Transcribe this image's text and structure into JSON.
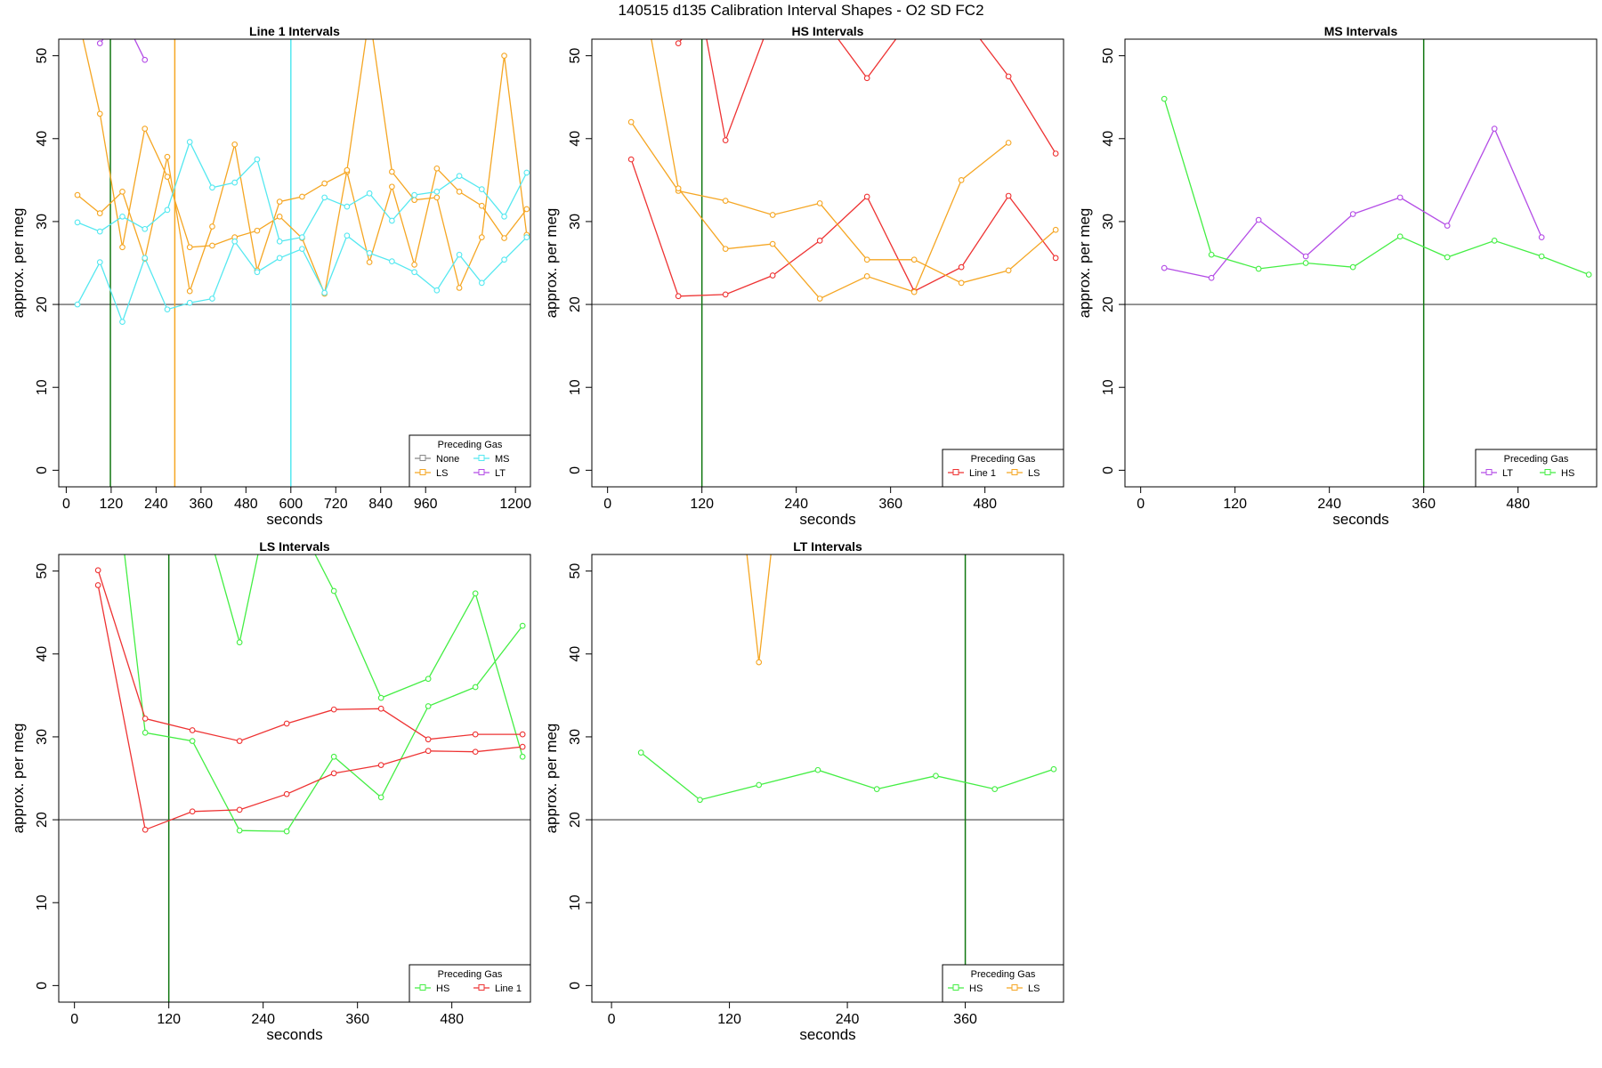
{
  "page": {
    "title": "140515   d135   Calibration Interval Shapes - O2 SD FC2"
  },
  "colors": {
    "None": "#888888",
    "LS": "#f5a623",
    "MS": "#55e8f0",
    "LT": "#b44de6",
    "HS": "#44ee44",
    "Line 1": "#ee3333",
    "vline_green": "#117711",
    "hline": "#444444"
  },
  "chart_data": [
    {
      "type": "line",
      "title": "Line 1 Intervals",
      "xlabel": "seconds",
      "ylabel": "approx. per meg",
      "xlim": [
        -20,
        1240
      ],
      "ylim": [
        -2,
        52
      ],
      "xticks": [
        0,
        120,
        240,
        360,
        480,
        600,
        720,
        840,
        960,
        1200
      ],
      "yticks": [
        0,
        10,
        20,
        30,
        40,
        50
      ],
      "hline": 20,
      "vlines": [
        {
          "x": 118,
          "color": "vline_green"
        },
        {
          "x": 290,
          "color": "LS"
        },
        {
          "x": 600,
          "color": "MS"
        }
      ],
      "legend": {
        "title": "Preceding Gas",
        "position": "bottom-right",
        "columns": 2,
        "entries": [
          "None",
          "MS",
          "LS",
          "LT"
        ]
      },
      "series": [
        {
          "name": "LS",
          "x": [
            30,
            90,
            150,
            210,
            270,
            330,
            390,
            450,
            510,
            570,
            630,
            690,
            750,
            810,
            870,
            930,
            990,
            1050,
            1110,
            1170,
            1230
          ],
          "y": [
            33.2,
            31.0,
            33.6,
            25.5,
            37.8,
            21.6,
            29.4,
            39.3,
            24.1,
            32.4,
            33.0,
            34.6,
            36.0,
            25.1,
            34.2,
            24.8,
            36.4,
            33.6,
            31.9,
            28.0,
            31.5
          ]
        },
        {
          "name": "LS",
          "x": [
            30,
            90,
            150,
            210,
            270,
            330,
            390,
            450,
            510,
            570,
            630,
            690,
            750,
            810,
            870,
            930,
            990,
            1050,
            1110,
            1170,
            1230
          ],
          "y": [
            55,
            43.0,
            26.9,
            41.2,
            35.4,
            26.9,
            27.1,
            28.1,
            28.9,
            30.6,
            28.0,
            21.3,
            36.2,
            55,
            36.0,
            32.6,
            32.9,
            22.0,
            28.1,
            50.0,
            28.4
          ]
        },
        {
          "name": "MS",
          "x": [
            30,
            90,
            150,
            210,
            270,
            330,
            390,
            450,
            510,
            570,
            630,
            690,
            750,
            810,
            870,
            930,
            990,
            1050,
            1110,
            1170,
            1230
          ],
          "y": [
            29.9,
            28.8,
            30.6,
            29.1,
            31.4,
            39.6,
            34.1,
            34.7,
            37.5,
            27.6,
            28.1,
            32.9,
            31.8,
            33.4,
            30.1,
            33.2,
            33.6,
            35.5,
            33.9,
            30.6,
            35.9
          ]
        },
        {
          "name": "MS",
          "x": [
            30,
            90,
            150,
            210,
            270,
            330,
            390,
            450,
            510,
            570,
            630,
            690,
            750,
            810,
            870,
            930,
            990,
            1050,
            1110,
            1170,
            1230
          ],
          "y": [
            20.0,
            25.1,
            17.9,
            25.6,
            19.4,
            20.2,
            20.7,
            27.6,
            23.9,
            25.6,
            26.7,
            21.4,
            28.3,
            26.2,
            25.2,
            23.9,
            21.7,
            26.0,
            22.6,
            25.4,
            28.1
          ]
        },
        {
          "name": "LT",
          "x": [
            90,
            150,
            210
          ],
          "y": [
            51.5,
            55,
            49.5
          ]
        }
      ]
    },
    {
      "type": "line",
      "title": "HS Intervals",
      "xlabel": "seconds",
      "ylabel": "approx. per meg",
      "xlim": [
        -20,
        580
      ],
      "ylim": [
        -2,
        52
      ],
      "xticks": [
        0,
        120,
        240,
        360,
        480
      ],
      "yticks": [
        0,
        10,
        20,
        30,
        40,
        50
      ],
      "hline": 20,
      "vlines": [
        {
          "x": 120,
          "color": "vline_green"
        }
      ],
      "legend": {
        "title": "Preceding Gas",
        "position": "bottom-right",
        "columns": 2,
        "entries": [
          "Line 1",
          "LS"
        ]
      },
      "series": [
        {
          "name": "Line 1",
          "x": [
            30,
            90,
            150,
            210,
            270,
            330,
            390,
            450,
            510,
            570
          ],
          "y": [
            37.5,
            21.0,
            21.2,
            23.5,
            27.7,
            33.0,
            21.6,
            24.5,
            33.1,
            25.6
          ]
        },
        {
          "name": "Line 1",
          "x": [
            90,
            120,
            150,
            210,
            270,
            330,
            390,
            450,
            510,
            570
          ],
          "y": [
            51.5,
            55,
            39.8,
            55,
            55,
            47.3,
            55,
            55,
            47.5,
            38.2
          ]
        },
        {
          "name": "LS",
          "x": [
            30,
            90,
            150,
            210,
            270,
            330,
            390,
            450,
            510,
            570
          ],
          "y": [
            42.0,
            33.7,
            32.5,
            30.8,
            32.2,
            25.4,
            25.4,
            22.6,
            24.1,
            29.0
          ]
        },
        {
          "name": "LS",
          "x": [
            50,
            90,
            150,
            210,
            270,
            330,
            390,
            450,
            510
          ],
          "y": [
            55,
            34.0,
            26.7,
            27.3,
            20.7,
            23.4,
            21.5,
            35.0,
            39.5
          ]
        }
      ]
    },
    {
      "type": "line",
      "title": "MS Intervals",
      "xlabel": "seconds",
      "ylabel": "approx. per meg",
      "xlim": [
        -20,
        580
      ],
      "ylim": [
        -2,
        52
      ],
      "xticks": [
        0,
        120,
        240,
        360,
        480
      ],
      "yticks": [
        0,
        10,
        20,
        30,
        40,
        50
      ],
      "hline": 20,
      "vlines": [
        {
          "x": 360,
          "color": "vline_green"
        }
      ],
      "legend": {
        "title": "Preceding Gas",
        "position": "bottom-right",
        "columns": 2,
        "entries": [
          "LT",
          "HS"
        ]
      },
      "series": [
        {
          "name": "LT",
          "x": [
            30,
            90,
            150,
            210,
            270,
            330,
            390,
            450,
            510
          ],
          "y": [
            24.4,
            23.2,
            30.2,
            25.8,
            30.9,
            32.9,
            29.5,
            41.2,
            28.1
          ]
        },
        {
          "name": "HS",
          "x": [
            30,
            90,
            150,
            210,
            270,
            330,
            390,
            450,
            510,
            570
          ],
          "y": [
            44.8,
            26.0,
            24.3,
            25.0,
            24.5,
            28.2,
            25.7,
            27.7,
            25.8,
            23.6
          ]
        }
      ]
    },
    {
      "type": "line",
      "title": "LS Intervals",
      "xlabel": "seconds",
      "ylabel": "approx. per meg",
      "xlim": [
        -20,
        580
      ],
      "ylim": [
        -2,
        52
      ],
      "xticks": [
        0,
        120,
        240,
        360,
        480
      ],
      "yticks": [
        0,
        10,
        20,
        30,
        40,
        50
      ],
      "hline": 20,
      "vlines": [
        {
          "x": 120,
          "color": "vline_green"
        }
      ],
      "legend": {
        "title": "Preceding Gas",
        "position": "bottom-right",
        "columns": 2,
        "entries": [
          "HS",
          "Line 1"
        ]
      },
      "series": [
        {
          "name": "HS",
          "x": [
            60,
            90,
            150,
            210,
            270,
            330,
            390,
            450,
            510,
            570
          ],
          "y": [
            55,
            30.5,
            29.5,
            18.7,
            18.6,
            27.6,
            22.7,
            33.7,
            36.0,
            43.4
          ]
        },
        {
          "name": "HS",
          "x": [
            170,
            210,
            240,
            290,
            330,
            390,
            450,
            510,
            570
          ],
          "y": [
            55,
            41.4,
            55,
            55,
            47.6,
            34.7,
            37.0,
            47.3,
            27.6
          ]
        },
        {
          "name": "Line 1",
          "x": [
            30,
            90,
            150,
            210,
            270,
            330,
            390,
            450,
            510,
            570
          ],
          "y": [
            50.1,
            32.2,
            30.8,
            29.5,
            31.6,
            33.3,
            33.4,
            29.7,
            30.3,
            30.3
          ]
        },
        {
          "name": "Line 1",
          "x": [
            30,
            90,
            150,
            210,
            270,
            330,
            390,
            450,
            510,
            570
          ],
          "y": [
            48.3,
            18.8,
            21.0,
            21.2,
            23.1,
            25.6,
            26.6,
            28.3,
            28.2,
            28.8
          ]
        }
      ]
    },
    {
      "type": "line",
      "title": "LT Intervals",
      "xlabel": "seconds",
      "ylabel": "approx. per meg",
      "xlim": [
        -20,
        460
      ],
      "ylim": [
        -2,
        52
      ],
      "xticks": [
        0,
        120,
        240,
        360
      ],
      "yticks": [
        0,
        10,
        20,
        30,
        40,
        50
      ],
      "hline": 20,
      "vlines": [
        {
          "x": 360,
          "color": "vline_green"
        }
      ],
      "legend": {
        "title": "Preceding Gas",
        "position": "bottom-right",
        "columns": 2,
        "entries": [
          "HS",
          "LS"
        ]
      },
      "series": [
        {
          "name": "HS",
          "x": [
            30,
            90,
            150,
            210,
            270,
            330,
            390,
            450
          ],
          "y": [
            28.1,
            22.4,
            24.2,
            26.0,
            23.7,
            25.3,
            23.7,
            26.1
          ]
        },
        {
          "name": "LS",
          "x": [
            135,
            150,
            165
          ],
          "y": [
            55,
            39.0,
            55
          ]
        }
      ]
    }
  ]
}
